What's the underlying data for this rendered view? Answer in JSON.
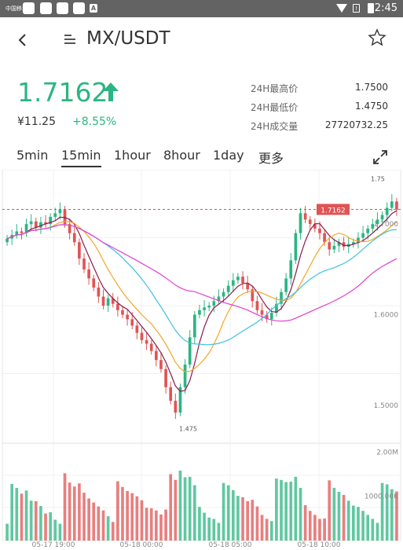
{
  "statusbar": {
    "carrier": "中国移动",
    "time": "2:45",
    "sim": "!"
  },
  "header": {
    "title": "MX/USDT",
    "back_icon": "chevron-left-icon",
    "pair_icon": "list-icon",
    "favorite_icon": "star-outline-icon"
  },
  "ticker": {
    "price": "1.7162",
    "cny": "¥11.25",
    "change": "+8.55%",
    "up_color": "#2bb582",
    "down_color": "#e05454",
    "stats": [
      {
        "label": "24H最高价",
        "value": "1.7500"
      },
      {
        "label": "24H最低价",
        "value": "1.4750"
      },
      {
        "label": "24H成交量",
        "value": "27720732.25"
      }
    ]
  },
  "tabs": [
    {
      "label": "5min"
    },
    {
      "label": "15min",
      "active": true
    },
    {
      "label": "1hour"
    },
    {
      "label": "8hour"
    },
    {
      "label": "1day"
    },
    {
      "label": "更多"
    }
  ],
  "chart_data": {
    "type": "candlestick",
    "ylim": [
      1.46,
      1.76
    ],
    "y_ticks": [
      "1.5000",
      "1.6000",
      "1.7000"
    ],
    "x_ticks": [
      "05-17 19:00",
      "05-18 00:00",
      "05-18 05:00",
      "05-18 10:00"
    ],
    "last_price_label": "1.7162",
    "high_label": "1.75",
    "low_label": "1.475",
    "volume_ticks": [
      "2.00M",
      "1000.00K"
    ],
    "volume_ylim": [
      0,
      2200000
    ],
    "ma_colors": [
      "#8b1a4a",
      "#f5a623",
      "#3fc1e0",
      "#e040d0"
    ],
    "close_series": [
      1.684,
      1.688,
      1.692,
      1.69,
      1.7,
      1.703,
      1.696,
      1.702,
      1.7,
      1.708,
      1.712,
      1.716,
      1.7,
      1.69,
      1.68,
      1.662,
      1.65,
      1.64,
      1.63,
      1.62,
      1.61,
      1.618,
      1.612,
      1.605,
      1.6,
      1.595,
      1.588,
      1.58,
      1.572,
      1.568,
      1.56,
      1.55,
      1.54,
      1.52,
      1.505,
      1.492,
      1.52,
      1.545,
      1.575,
      1.6,
      1.605,
      1.608,
      1.61,
      1.615,
      1.62,
      1.625,
      1.632,
      1.638,
      1.642,
      1.635,
      1.628,
      1.615,
      1.605,
      1.6,
      1.595,
      1.602,
      1.612,
      1.625,
      1.64,
      1.66,
      1.69,
      1.712,
      1.705,
      1.7,
      1.695,
      1.69,
      1.68,
      1.672,
      1.676,
      1.68,
      1.675,
      1.678,
      1.68,
      1.685,
      1.69,
      1.695,
      1.7,
      1.705,
      1.71,
      1.718,
      1.725,
      1.716
    ]
  }
}
